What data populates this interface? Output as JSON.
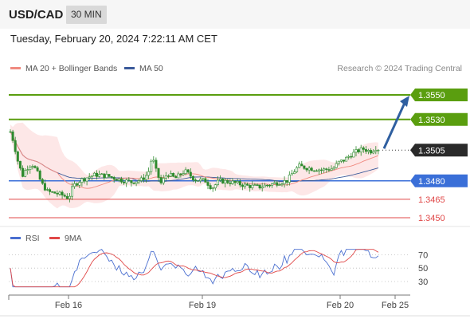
{
  "header": {
    "pair": "USD/CAD",
    "timeframe": "30 MIN"
  },
  "datetime": "Tuesday, February 20, 2024 7:22:11 AM CET",
  "legend": {
    "ma20": "MA 20 + Bollinger Bands",
    "ma50": "MA 50"
  },
  "credit": "Research © 2024 Trading Central",
  "rsi_legend": {
    "rsi": "RSI",
    "ma9": "9MA"
  },
  "colors": {
    "ma20": "#f08a80",
    "ma50": "#3a5a9a",
    "band": "#fde3e3",
    "green": "#5a9e0f",
    "blue": "#3a6fd8",
    "red": "#e04848",
    "candle": "#2e8b2e",
    "arrow": "#2f5fa0"
  },
  "chart_data": {
    "type": "candlestick",
    "price_axis_range": [
      1.344,
      1.3595
    ],
    "price_levels": [
      {
        "value": "1.3550",
        "style": "resistance"
      },
      {
        "value": "1.3530",
        "style": "resistance"
      },
      {
        "value": "1.3505",
        "style": "current"
      },
      {
        "value": "1.3480",
        "style": "pivot"
      },
      {
        "value": "1.3465",
        "style": "support"
      },
      {
        "value": "1.3450",
        "style": "support"
      }
    ],
    "x_ticks": [
      "Feb 16",
      "Feb 19",
      "Feb 20",
      "Feb 25"
    ],
    "forecast_target": 1.355,
    "rsi": {
      "ticks": [
        "70",
        "50",
        "30"
      ],
      "range": [
        15,
        85
      ]
    }
  }
}
